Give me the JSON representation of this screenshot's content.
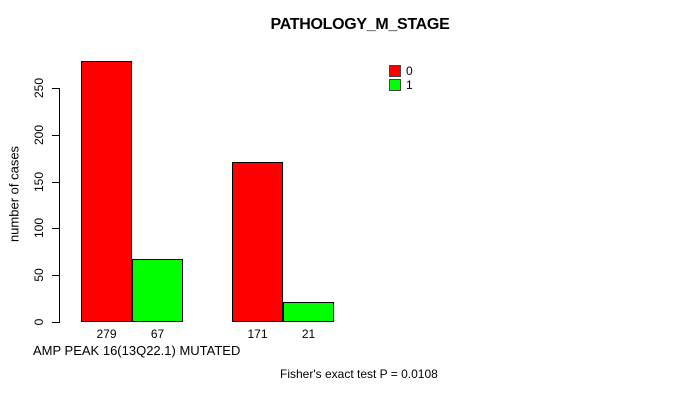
{
  "footnote": "Fisher's exact test P = 0.0108",
  "legend": {
    "items": [
      {
        "label": "0",
        "color": "#FF0000"
      },
      {
        "label": "1",
        "color": "#00FF00"
      }
    ]
  },
  "chart_data": {
    "type": "bar",
    "title": "PATHOLOGY_M_STAGE",
    "xlabel": "AMP PEAK 16(13Q22.1) MUTATED",
    "ylabel": "number of cases",
    "ylim": [
      0,
      280
    ],
    "yticks": [
      0,
      50,
      100,
      150,
      200,
      250
    ],
    "grid": false,
    "legend_position": "top-right",
    "series": [
      {
        "name": "0",
        "color": "#FF0000",
        "values": [
          279,
          171
        ]
      },
      {
        "name": "1",
        "color": "#00FF00",
        "values": [
          67,
          21
        ]
      }
    ],
    "bar_value_labels": [
      [
        279,
        67
      ],
      [
        171,
        21
      ]
    ],
    "annotation": "Fisher's exact test P = 0.0108"
  }
}
